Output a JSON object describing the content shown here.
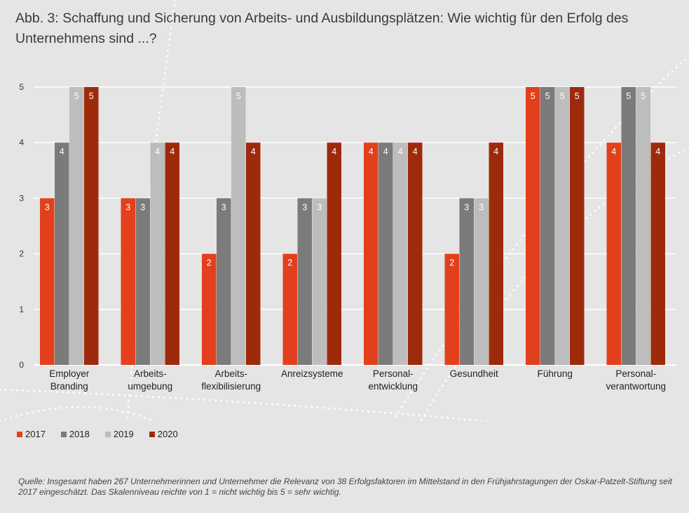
{
  "title": "Abb. 3:  Schaffung und Sicherung von Arbeits- und Ausbildungsplätzen: Wie wichtig für den Erfolg des Unternehmens sind ...?",
  "chart_data": {
    "type": "bar",
    "categories": [
      [
        "Employer",
        "Branding"
      ],
      [
        "Arbeits-",
        "umgebung"
      ],
      [
        "Arbeits-",
        "flexibilisierung"
      ],
      [
        "Anreizsysteme"
      ],
      [
        "Personal-",
        "entwicklung"
      ],
      [
        "Gesundheit"
      ],
      [
        "Führung"
      ],
      [
        "Personal-",
        "verantwortung"
      ]
    ],
    "series": [
      {
        "name": "2017",
        "color": "#e2401c",
        "values": [
          3,
          3,
          2,
          2,
          4,
          2,
          5,
          4
        ]
      },
      {
        "name": "2018",
        "color": "#7b7b7b",
        "values": [
          4,
          3,
          3,
          3,
          4,
          3,
          5,
          5
        ]
      },
      {
        "name": "2019",
        "color": "#bdbdbd",
        "values": [
          5,
          4,
          5,
          3,
          4,
          3,
          5,
          5
        ]
      },
      {
        "name": "2020",
        "color": "#9e2a0c",
        "values": [
          5,
          4,
          4,
          4,
          4,
          4,
          5,
          4
        ]
      }
    ],
    "ylim": [
      0,
      5
    ],
    "yticks": [
      0,
      1,
      2,
      3,
      4,
      5
    ],
    "grid": true,
    "legend_position": "bottom-left",
    "data_labels": true
  },
  "footnote": "Quelle: Insgesamt haben 267 Unternehmerinnen und Unternehmer die Relevanz von 38 Erfolgsfaktoren im Mittelstand in den Frühjahrstagungen der Oskar-Patzelt-Stiftung seit 2017 eingeschätzt. Das Skalenniveau reichte von 1 = nicht wichtig bis 5 = sehr wichtig."
}
